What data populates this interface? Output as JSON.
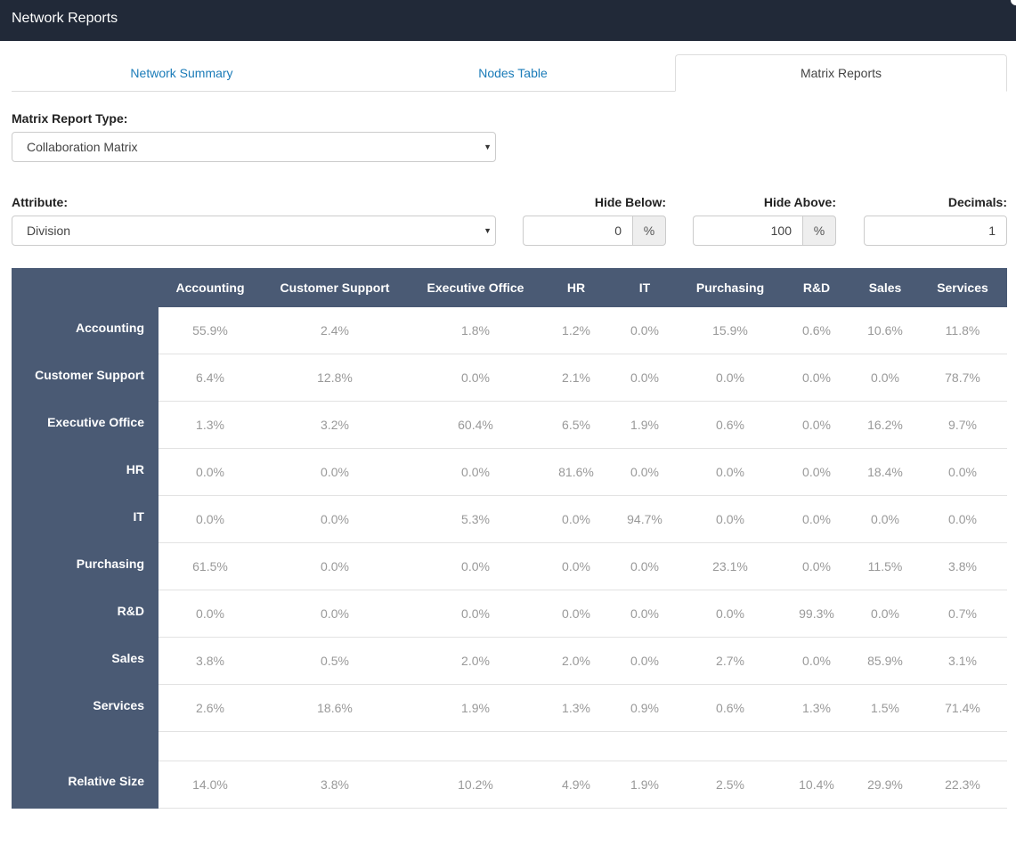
{
  "app": {
    "title": "Network Reports"
  },
  "tabs": [
    {
      "label": "Network Summary",
      "active": false
    },
    {
      "label": "Nodes Table",
      "active": false
    },
    {
      "label": "Matrix Reports",
      "active": true
    }
  ],
  "controls": {
    "report_type_label": "Matrix Report Type:",
    "report_type_value": "Collaboration Matrix",
    "attribute_label": "Attribute:",
    "attribute_value": "Division",
    "hide_below_label": "Hide Below:",
    "hide_below_value": "0",
    "hide_above_label": "Hide Above:",
    "hide_above_value": "100",
    "percent_addon": "%",
    "decimals_label": "Decimals:",
    "decimals_value": "1"
  },
  "icons": {
    "caret": "caret-down-icon"
  },
  "colors": {
    "header_bg": "#212938",
    "matrix_header": "#4a5a74",
    "link": "#1a7bb8",
    "cell_text": "#999999"
  },
  "matrix": {
    "columns": [
      "Accounting",
      "Customer Support",
      "Executive Office",
      "HR",
      "IT",
      "Purchasing",
      "R&D",
      "Sales",
      "Services"
    ],
    "rows": [
      {
        "label": "Accounting",
        "values": [
          "55.9%",
          "2.4%",
          "1.8%",
          "1.2%",
          "0.0%",
          "15.9%",
          "0.6%",
          "10.6%",
          "11.8%"
        ]
      },
      {
        "label": "Customer Support",
        "values": [
          "6.4%",
          "12.8%",
          "0.0%",
          "2.1%",
          "0.0%",
          "0.0%",
          "0.0%",
          "0.0%",
          "78.7%"
        ]
      },
      {
        "label": "Executive Office",
        "values": [
          "1.3%",
          "3.2%",
          "60.4%",
          "6.5%",
          "1.9%",
          "0.6%",
          "0.0%",
          "16.2%",
          "9.7%"
        ]
      },
      {
        "label": "HR",
        "values": [
          "0.0%",
          "0.0%",
          "0.0%",
          "81.6%",
          "0.0%",
          "0.0%",
          "0.0%",
          "18.4%",
          "0.0%"
        ]
      },
      {
        "label": "IT",
        "values": [
          "0.0%",
          "0.0%",
          "5.3%",
          "0.0%",
          "94.7%",
          "0.0%",
          "0.0%",
          "0.0%",
          "0.0%"
        ]
      },
      {
        "label": "Purchasing",
        "values": [
          "61.5%",
          "0.0%",
          "0.0%",
          "0.0%",
          "0.0%",
          "23.1%",
          "0.0%",
          "11.5%",
          "3.8%"
        ]
      },
      {
        "label": "R&D",
        "values": [
          "0.0%",
          "0.0%",
          "0.0%",
          "0.0%",
          "0.0%",
          "0.0%",
          "99.3%",
          "0.0%",
          "0.7%"
        ]
      },
      {
        "label": "Sales",
        "values": [
          "3.8%",
          "0.5%",
          "2.0%",
          "2.0%",
          "0.0%",
          "2.7%",
          "0.0%",
          "85.9%",
          "3.1%"
        ]
      },
      {
        "label": "Services",
        "values": [
          "2.6%",
          "18.6%",
          "1.9%",
          "1.3%",
          "0.9%",
          "0.6%",
          "1.3%",
          "1.5%",
          "71.4%"
        ]
      }
    ],
    "relative_size": {
      "label": "Relative Size",
      "values": [
        "14.0%",
        "3.8%",
        "10.2%",
        "4.9%",
        "1.9%",
        "2.5%",
        "10.4%",
        "29.9%",
        "22.3%"
      ]
    }
  }
}
